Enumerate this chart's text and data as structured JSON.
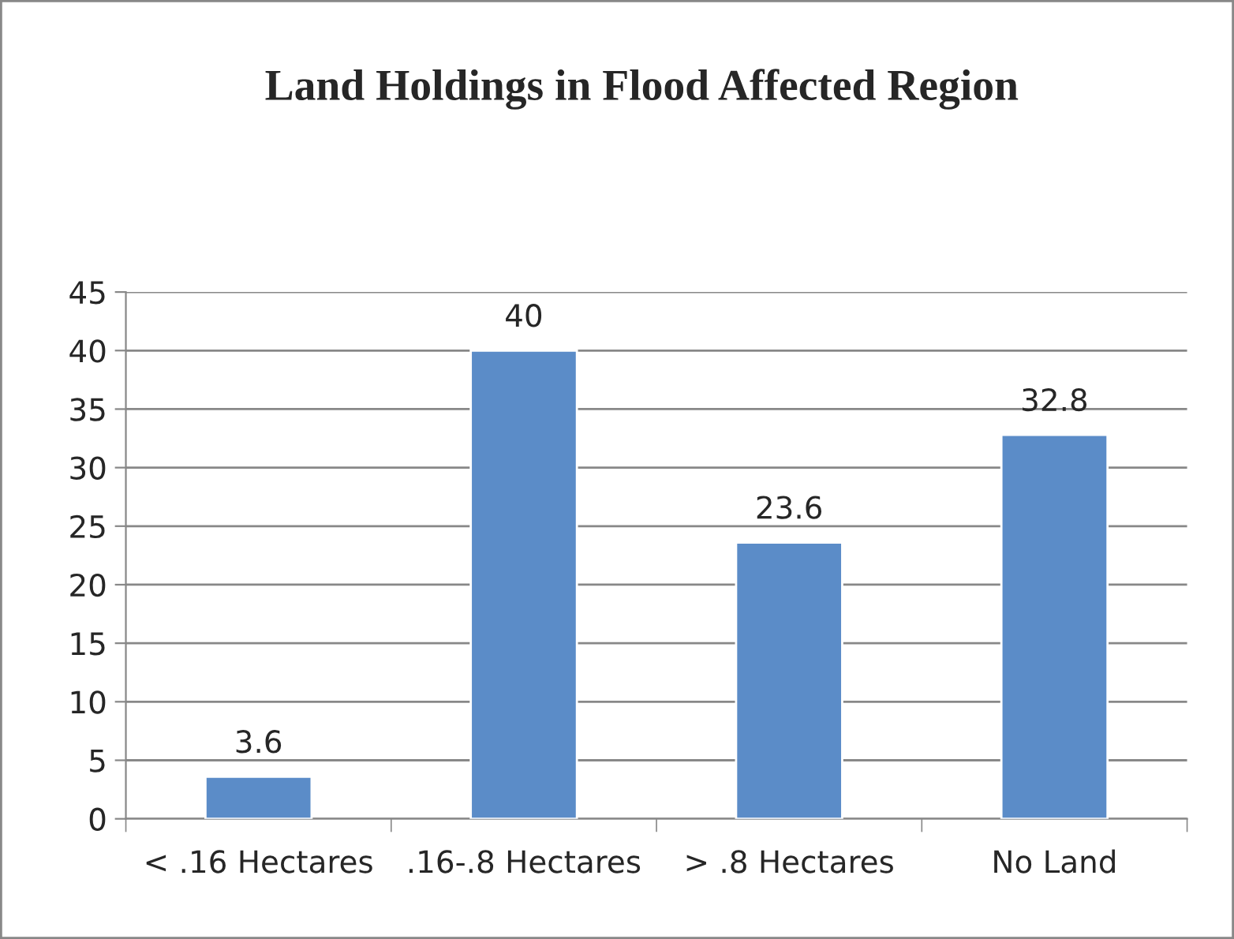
{
  "chart_data": {
    "type": "bar",
    "title": "Land Holdings in Flood Affected Region",
    "categories": [
      "< .16 Hectares",
      ".16-.8 Hectares",
      "> .8 Hectares",
      "No Land"
    ],
    "values": [
      3.6,
      40,
      23.6,
      32.8
    ],
    "color": "#5b8cc8",
    "ylim": [
      0,
      45
    ],
    "yticks": [
      0,
      5,
      10,
      15,
      20,
      25,
      30,
      35,
      40,
      45
    ],
    "grid": "y",
    "data_labels": true,
    "legend": false
  }
}
